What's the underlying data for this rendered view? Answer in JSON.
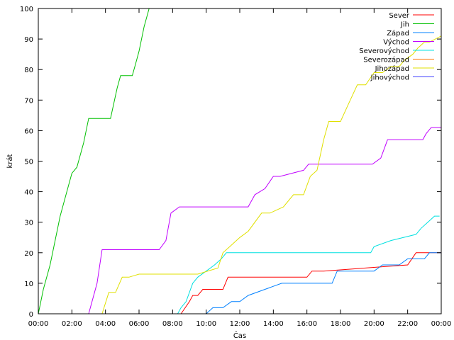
{
  "chart_data": {
    "type": "line",
    "title": "",
    "xlabel": "Čas",
    "ylabel": "krát",
    "xlim": [
      0,
      24
    ],
    "ylim": [
      0,
      100
    ],
    "x_ticks": [
      0,
      2,
      4,
      6,
      8,
      10,
      12,
      14,
      16,
      18,
      20,
      22,
      24
    ],
    "x_tick_labels": [
      "00:00",
      "02:00",
      "04:00",
      "06:00",
      "08:00",
      "10:00",
      "12:00",
      "14:00",
      "16:00",
      "18:00",
      "20:00",
      "22:00",
      "00:00"
    ],
    "y_ticks": [
      0,
      10,
      20,
      30,
      40,
      50,
      60,
      70,
      80,
      90,
      100
    ],
    "grid": false,
    "legend_position": "top-right",
    "series": [
      {
        "name": "Sever",
        "color": "#ff0000",
        "x": [
          0,
          8.5,
          9.0,
          9.2,
          9.5,
          9.8,
          10.0,
          10.2,
          11.0,
          11.3,
          16.0,
          16.3,
          17.0,
          22.0,
          22.5,
          23.0,
          23.3,
          24.0
        ],
        "y": [
          0,
          0,
          4,
          6,
          6,
          8,
          8,
          8,
          8,
          12,
          12,
          14,
          14,
          16,
          20,
          20,
          20,
          20
        ]
      },
      {
        "name": "Jih",
        "color": "#00c000",
        "x": [
          0,
          0.3,
          0.7,
          1.0,
          1.3,
          1.7,
          2.0,
          2.3,
          2.7,
          3.0,
          4.3,
          4.7,
          4.9,
          5.6,
          5.8,
          6.0,
          6.3,
          6.6
        ],
        "y": [
          0,
          8,
          16,
          24,
          32,
          40,
          46,
          48,
          56,
          64,
          64,
          74,
          78,
          78,
          82,
          86,
          94,
          100
        ]
      },
      {
        "name": "Západ",
        "color": "#0080ff",
        "x": [
          0,
          10.0,
          10.4,
          11.0,
          11.5,
          12.0,
          12.5,
          13.5,
          14.5,
          17.5,
          17.8,
          20.0,
          20.5,
          21.5,
          22.0,
          23.0,
          23.3,
          24.0
        ],
        "y": [
          0,
          0,
          2,
          2,
          4,
          4,
          6,
          8,
          10,
          10,
          14,
          14,
          16,
          16,
          18,
          18,
          20,
          20
        ]
      },
      {
        "name": "Východ",
        "color": "#c000ff",
        "x": [
          0,
          3.0,
          3.5,
          3.8,
          7.0,
          7.2,
          7.6,
          7.9,
          8.4,
          10.0,
          10.5,
          12.5,
          12.9,
          13.5,
          14.0,
          14.4,
          15.8,
          16.1,
          16.5,
          19.9,
          20.4,
          20.8,
          21.2,
          22.9,
          23.1,
          23.4,
          24.0
        ],
        "y": [
          0,
          0,
          10,
          21,
          21,
          21,
          24,
          33,
          35,
          35,
          35,
          35,
          39,
          41,
          45,
          45,
          47,
          49,
          49,
          49,
          51,
          57,
          57,
          57,
          59,
          61,
          61
        ]
      },
      {
        "name": "Severovýchod",
        "color": "#00e0e0",
        "x": [
          0,
          8.3,
          8.5,
          8.8,
          9.2,
          9.5,
          10.0,
          10.5,
          10.9,
          11.2,
          12.0,
          19.8,
          20.0,
          21.0,
          22.5,
          22.8,
          23.2,
          23.6,
          23.9
        ],
        "y": [
          0,
          0,
          2,
          4,
          10,
          12,
          14,
          16,
          18,
          20,
          20,
          20,
          22,
          24,
          26,
          28,
          30,
          32,
          32
        ]
      },
      {
        "name": "Severozápad",
        "color": "#ff7000",
        "x": [
          0,
          10.0,
          12.0,
          14.0,
          16.0,
          18.0,
          20.0,
          22.0,
          24.0
        ],
        "y": [
          0,
          0,
          0,
          0,
          0,
          0,
          0,
          0,
          0
        ]
      },
      {
        "name": "Jihozápad",
        "color": "#e0e000",
        "x": [
          0,
          3.8,
          4.2,
          4.6,
          5.0,
          5.4,
          6.0,
          8.0,
          9.5,
          10.7,
          11.0,
          11.4,
          12.0,
          12.5,
          13.3,
          13.8,
          14.6,
          15.2,
          15.8,
          16.2,
          16.6,
          17.0,
          17.3,
          18.0,
          18.5,
          19.0,
          19.5,
          20.0,
          20.5,
          21.0,
          21.5,
          21.8,
          22.3,
          22.6,
          23.0,
          23.3,
          24.0
        ],
        "y": [
          0,
          0,
          7,
          7,
          12,
          12,
          13,
          13,
          13,
          15,
          20,
          22,
          25,
          27,
          33,
          33,
          35,
          39,
          39,
          45,
          47,
          57,
          63,
          63,
          69,
          75,
          75,
          79,
          79,
          81,
          81,
          83,
          85,
          87,
          89,
          89,
          91
        ]
      },
      {
        "name": "Jihovýchod",
        "color": "#4040ff",
        "x": [
          0,
          10.0,
          12.0,
          14.0,
          16.0,
          18.0,
          20.0,
          22.0,
          24.0
        ],
        "y": [
          0,
          0,
          0,
          0,
          0,
          0,
          0,
          0,
          0
        ]
      }
    ]
  }
}
